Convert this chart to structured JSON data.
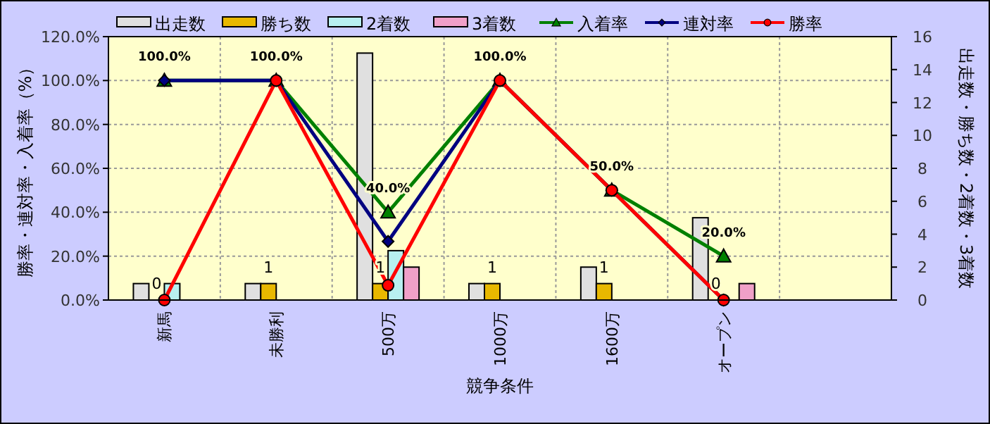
{
  "chart_data": {
    "type": "bar",
    "xlabel": "競争条件",
    "ylabel": "勝率・連対率・入着率（%）",
    "y2label": "出走数・勝ち数・2着数・3着数",
    "categories": [
      "新馬",
      "未勝利",
      "500万",
      "1000万",
      "1600万",
      "オープン",
      null
    ],
    "series": [
      {
        "name": "出走数",
        "axis": "y2",
        "color": "#e0e0e0",
        "values": [
          1,
          1,
          15,
          1,
          2,
          5,
          null
        ]
      },
      {
        "name": "勝ち数",
        "axis": "y2",
        "color": "#e8b800",
        "values": [
          0,
          1,
          1,
          1,
          1,
          0,
          null
        ],
        "value_labels": [
          "0",
          "1",
          "1",
          "1",
          "1",
          "0",
          null
        ]
      },
      {
        "name": "2着数",
        "axis": "y2",
        "color": "#b8f0f0",
        "values": [
          1,
          0,
          3,
          0,
          0,
          0,
          null
        ]
      },
      {
        "name": "3着数",
        "axis": "y2",
        "color": "#f0a0c8",
        "values": [
          0,
          0,
          2,
          0,
          0,
          1,
          null
        ]
      },
      {
        "name": "入着率",
        "type": "line",
        "color": "#008000",
        "marker": "triangle",
        "values": [
          100,
          100,
          40,
          100,
          50,
          20,
          null
        ],
        "value_labels": [
          "100.0%",
          "100.0%",
          "40.0%",
          "100.0%",
          "50.0%",
          "20.0%",
          null
        ]
      },
      {
        "name": "連対率",
        "type": "line",
        "color": "#000080",
        "marker": "diamond",
        "values": [
          100,
          100,
          26.7,
          100,
          50,
          0,
          null
        ]
      },
      {
        "name": "勝率",
        "type": "line",
        "color": "#ff0000",
        "marker": "circle",
        "values": [
          0,
          100,
          6.7,
          100,
          50,
          0,
          null
        ]
      }
    ],
    "ylim": [
      0,
      120
    ],
    "yticks": [
      {
        "value": 0,
        "label": "0.0%"
      },
      {
        "value": 20,
        "label": "20.0%"
      },
      {
        "value": 40,
        "label": "40.0%"
      },
      {
        "value": 60,
        "label": "60.0%"
      },
      {
        "value": 80,
        "label": "80.0%"
      },
      {
        "value": 100,
        "label": "100.0%"
      },
      {
        "value": 120,
        "label": "120.0%"
      }
    ],
    "y2lim": [
      0,
      16
    ],
    "y2ticks": [
      0,
      2,
      4,
      6,
      8,
      10,
      12,
      14,
      16
    ],
    "grid": true,
    "legend": "top"
  }
}
